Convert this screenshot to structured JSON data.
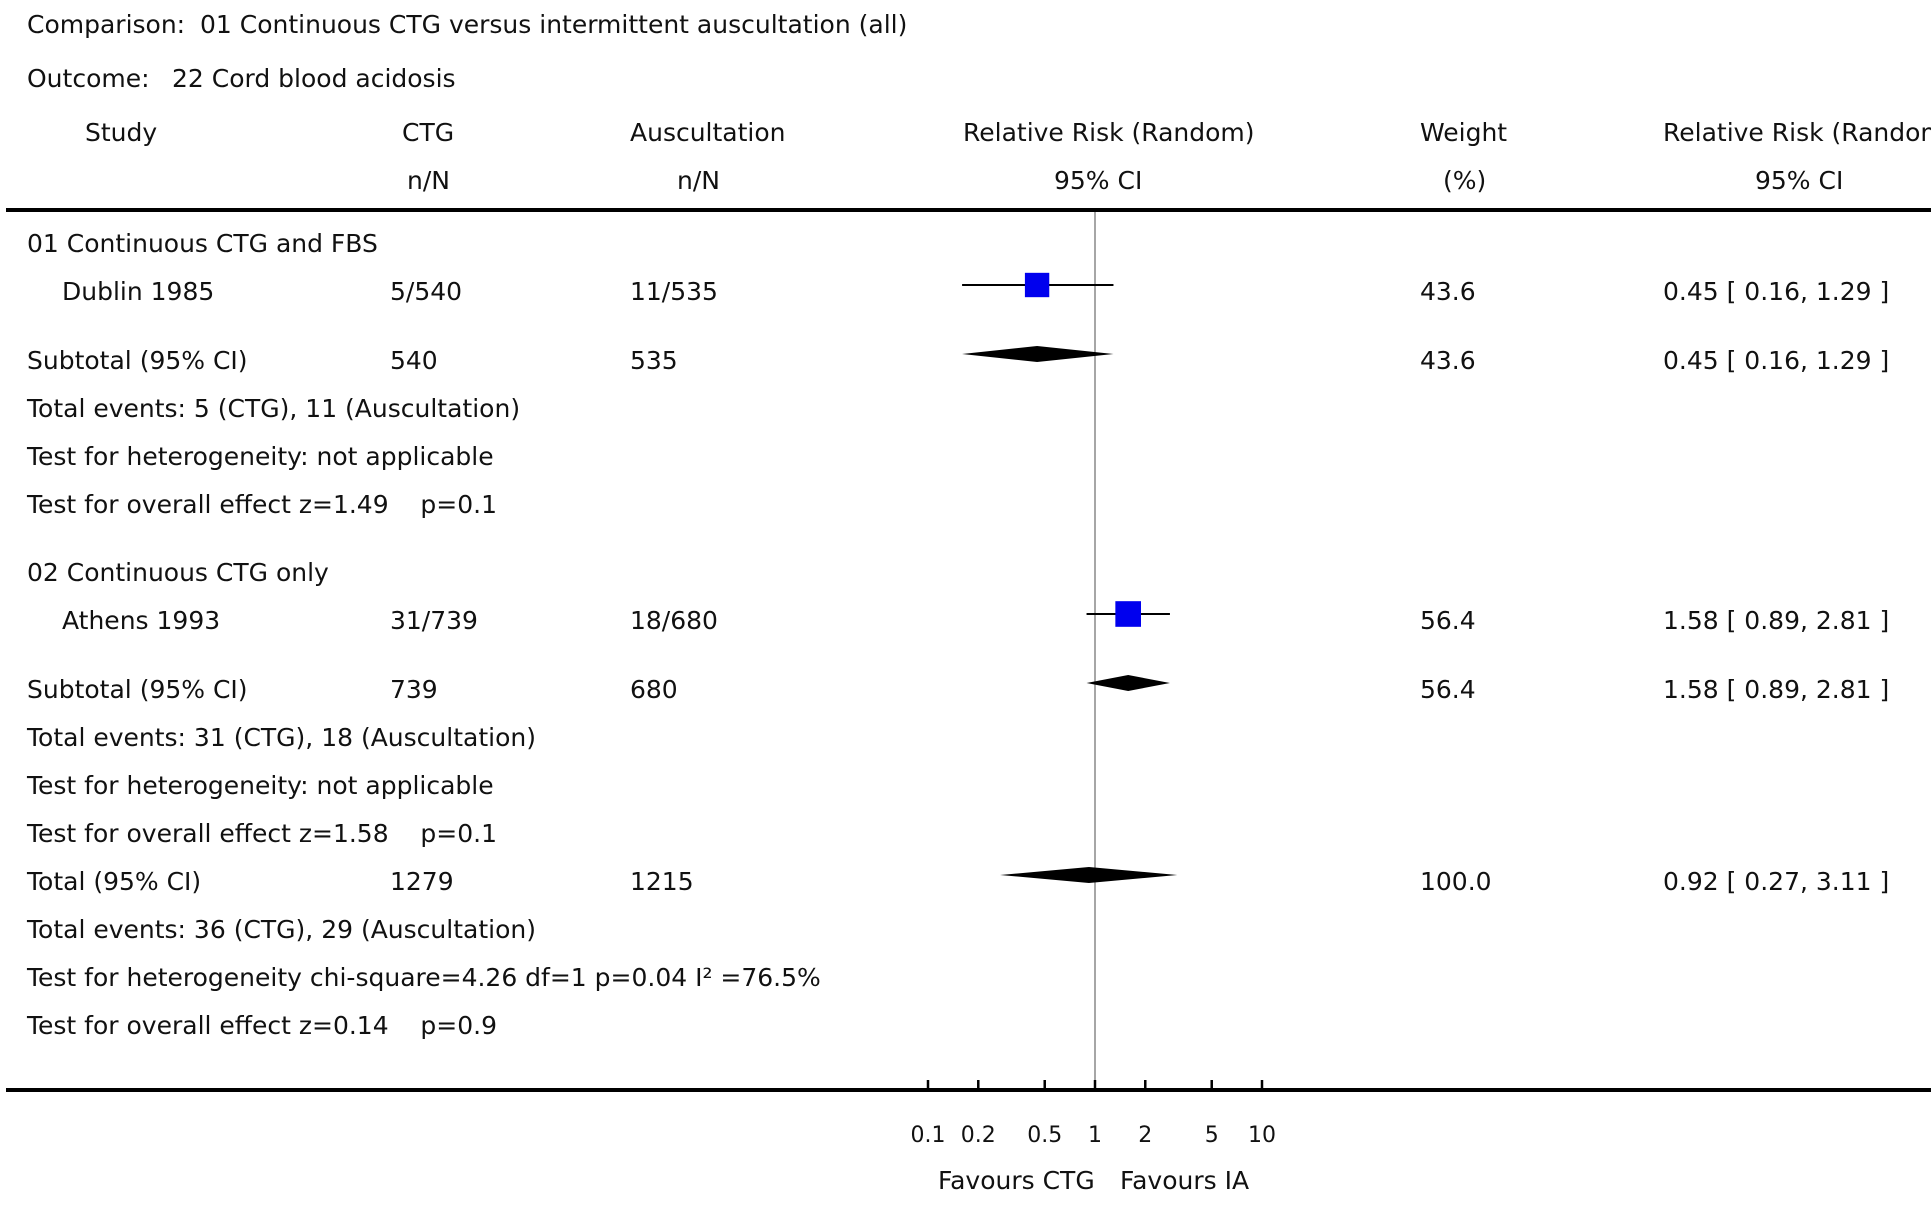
{
  "comparison": {
    "label": "Comparison:",
    "value": "01 Continuous CTG versus intermittent auscultation (all)"
  },
  "outcome": {
    "label": "Outcome:",
    "value": "22 Cord blood acidosis"
  },
  "columns": {
    "study": "Study",
    "ctg": "CTG",
    "ctg_sub": "n/N",
    "ausc": "Auscultation",
    "ausc_sub": "n/N",
    "rr": "Relative Risk (Random)",
    "rr_sub": "95% CI",
    "weight": "Weight",
    "weight_sub": "(%)",
    "rr2": "Relative Risk (Random)",
    "rr2_sub": "95% CI"
  },
  "groups": [
    {
      "title": "01 Continuous CTG and FBS",
      "study": {
        "name": "Dublin 1985",
        "ctg": "5/540",
        "ausc": "11/535",
        "weight": "43.6",
        "ci_text": "0.45 [ 0.16, 1.29 ]"
      },
      "subtotal": {
        "label": "Subtotal (95% CI)",
        "ctg": "540",
        "ausc": "535",
        "weight": "43.6",
        "ci_text": "0.45 [ 0.16, 1.29 ]"
      },
      "events": "Total events: 5 (CTG), 11 (Auscultation)",
      "heterogeneity": "Test for heterogeneity: not applicable",
      "overall": "Test for overall effect z=1.49    p=0.1"
    },
    {
      "title": "02 Continuous CTG only",
      "study": {
        "name": "Athens 1993",
        "ctg": "31/739",
        "ausc": "18/680",
        "weight": "56.4",
        "ci_text": "1.58 [ 0.89, 2.81 ]"
      },
      "subtotal": {
        "label": "Subtotal (95% CI)",
        "ctg": "739",
        "ausc": "680",
        "weight": "56.4",
        "ci_text": "1.58 [ 0.89, 2.81 ]"
      },
      "events": "Total events: 31 (CTG), 18 (Auscultation)",
      "heterogeneity": "Test for heterogeneity: not applicable",
      "overall": "Test for overall effect z=1.58    p=0.1"
    }
  ],
  "total": {
    "label": "Total (95% CI)",
    "ctg": "1279",
    "ausc": "1215",
    "weight": "100.0",
    "ci_text": "0.92 [ 0.27, 3.11 ]",
    "events": "Total events: 36 (CTG), 29 (Auscultation)",
    "heterogeneity": "Test for heterogeneity chi-square=4.26 df=1 p=0.04 I² =76.5%",
    "overall": "Test for overall effect z=0.14    p=0.9"
  },
  "axis": {
    "left_label": "Favours CTG",
    "right_label": "Favours IA"
  },
  "colors": {
    "study_marker": "#0000ee",
    "diamond": "#000000",
    "ref_line": "#888888"
  },
  "chart_data": {
    "type": "forest",
    "scale": "log",
    "xlim": [
      0.1,
      10
    ],
    "ticks": [
      0.1,
      0.2,
      0.5,
      1,
      2,
      5,
      10
    ],
    "tick_labels": [
      "0.1",
      "0.2",
      "0.5",
      "1",
      "2",
      "5",
      "10"
    ],
    "studies": [
      {
        "name": "Dublin 1985",
        "rr": 0.45,
        "lo": 0.16,
        "hi": 1.29,
        "weight": 43.6
      },
      {
        "name": "Athens 1993",
        "rr": 1.58,
        "lo": 0.89,
        "hi": 2.81,
        "weight": 56.4
      }
    ],
    "subtotals": [
      {
        "label": "Subtotal (95% CI)",
        "group": "01 Continuous CTG and FBS",
        "rr": 0.45,
        "lo": 0.16,
        "hi": 1.29
      },
      {
        "label": "Subtotal (95% CI)",
        "group": "02 Continuous CTG only",
        "rr": 1.58,
        "lo": 0.89,
        "hi": 2.81
      }
    ],
    "total": {
      "label": "Total (95% CI)",
      "rr": 0.92,
      "lo": 0.27,
      "hi": 3.11
    }
  }
}
